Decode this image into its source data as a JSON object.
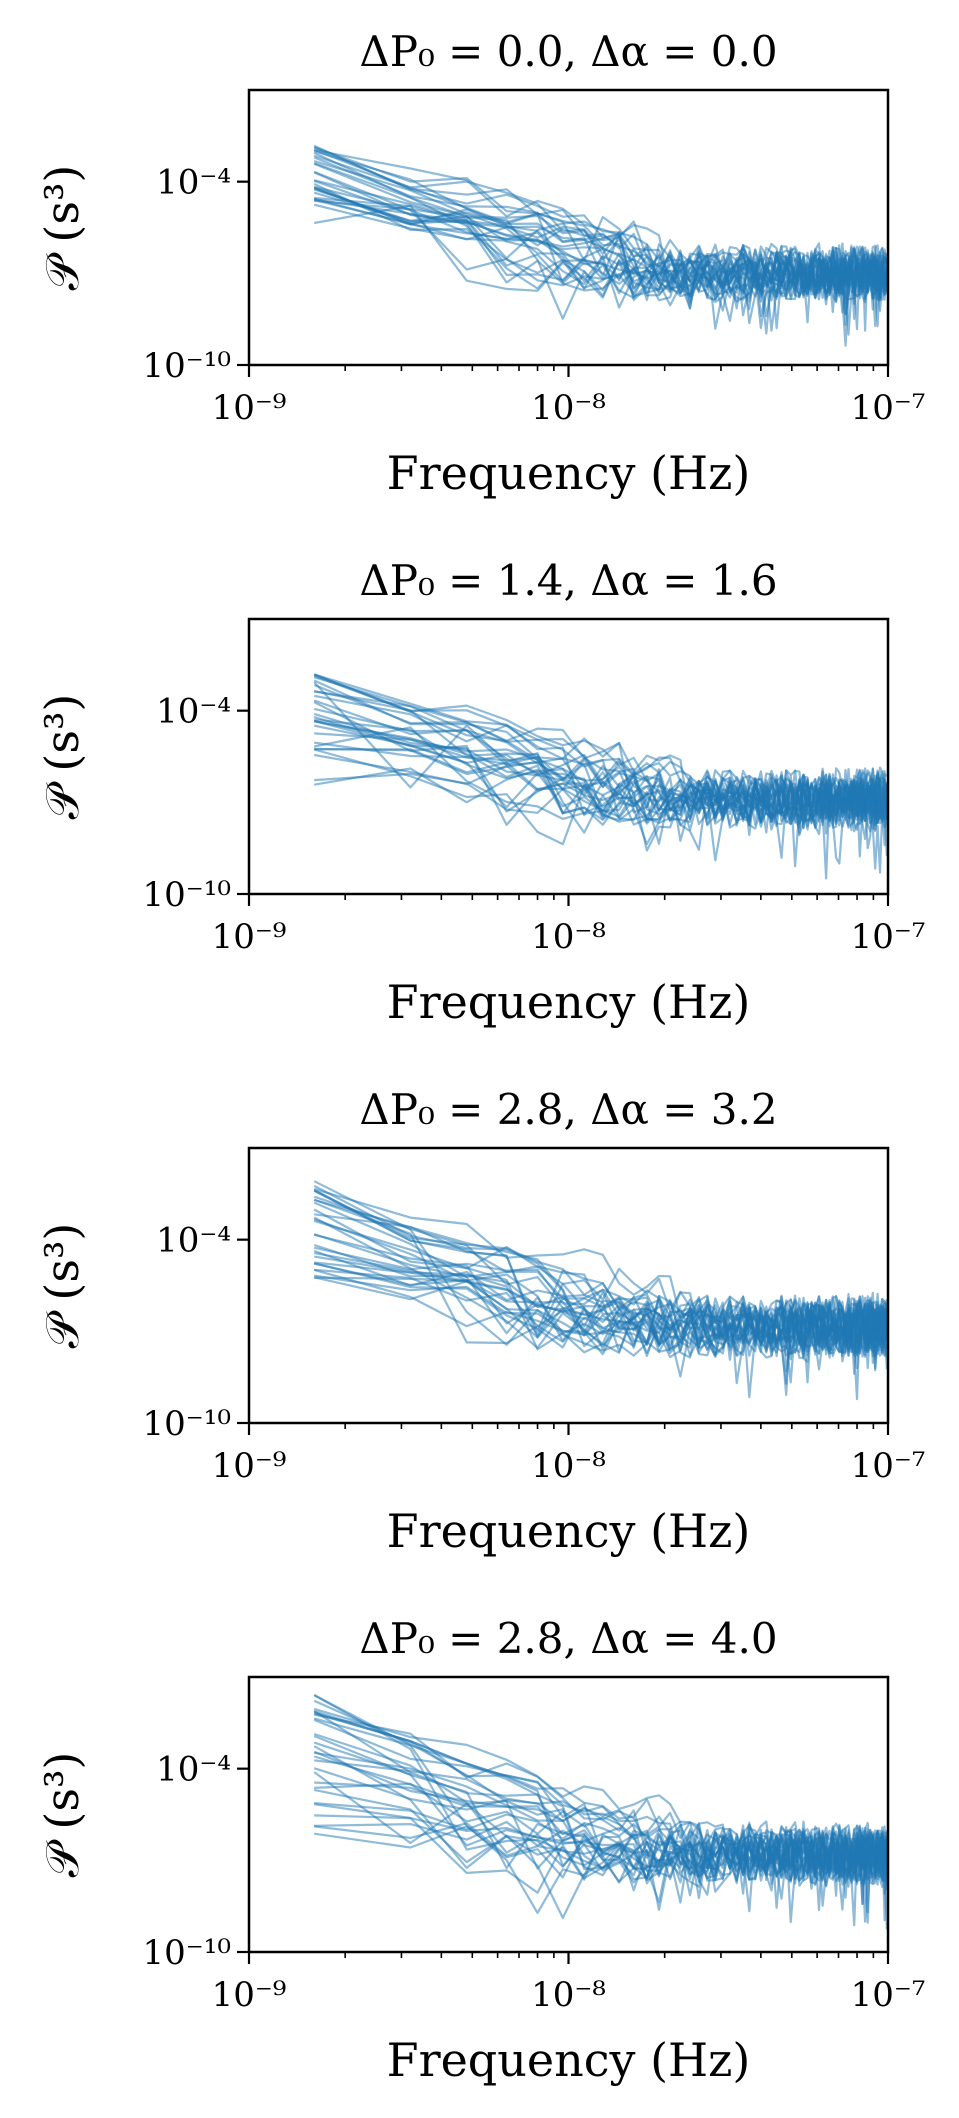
{
  "chart_data": [
    {
      "type": "line",
      "title": "ΔP₀ = 0.0, Δα = 0.0",
      "xlabel": "Frequency (Hz)",
      "ylabel": "𝒫 (s³)",
      "xscale": "log",
      "yscale": "log",
      "xlim": [
        1e-09,
        1e-07
      ],
      "ylim": [
        1e-10,
        0.1
      ],
      "xticks": [
        "10⁻⁹",
        "10⁻⁸",
        "10⁻⁷"
      ],
      "yticks": [
        "10⁻¹⁰",
        "10⁻⁴"
      ],
      "grid": false,
      "series_count": 30,
      "x_start": 1.6e-09,
      "start_log_range": [
        -4.8,
        -2.8
      ],
      "floor_log": -7.0,
      "noise_log": 0.7,
      "color": "#1f77b4"
    },
    {
      "type": "line",
      "title": "ΔP₀ = 1.4, Δα = 1.6",
      "xlabel": "Frequency (Hz)",
      "ylabel": "𝒫 (s³)",
      "xscale": "log",
      "yscale": "log",
      "xlim": [
        1e-09,
        1e-07
      ],
      "ylim": [
        1e-10,
        0.1
      ],
      "xticks": [
        "10⁻⁹",
        "10⁻⁸",
        "10⁻⁷"
      ],
      "yticks": [
        "10⁻¹⁰",
        "10⁻⁴"
      ],
      "grid": false,
      "series_count": 30,
      "x_start": 1.6e-09,
      "start_log_range": [
        -5.5,
        -2.8
      ],
      "floor_log": -6.9,
      "noise_log": 0.75,
      "color": "#1f77b4"
    },
    {
      "type": "line",
      "title": "ΔP₀ = 2.8, Δα = 3.2",
      "xlabel": "Frequency (Hz)",
      "ylabel": "𝒫 (s³)",
      "xscale": "log",
      "yscale": "log",
      "xlim": [
        1e-09,
        1e-07
      ],
      "ylim": [
        1e-10,
        0.1
      ],
      "xticks": [
        "10⁻⁹",
        "10⁻⁸",
        "10⁻⁷"
      ],
      "yticks": [
        "10⁻¹⁰",
        "10⁻⁴"
      ],
      "grid": false,
      "series_count": 30,
      "x_start": 1.6e-09,
      "start_log_range": [
        -5.5,
        -2.0
      ],
      "floor_log": -6.8,
      "noise_log": 0.8,
      "color": "#1f77b4"
    },
    {
      "type": "line",
      "title": "ΔP₀ = 2.8, Δα = 4.0",
      "xlabel": "Frequency (Hz)",
      "ylabel": "𝒫 (s³)",
      "xscale": "log",
      "yscale": "log",
      "xlim": [
        1e-09,
        1e-07
      ],
      "ylim": [
        1e-10,
        0.1
      ],
      "xticks": [
        "10⁻⁹",
        "10⁻⁸",
        "10⁻⁷"
      ],
      "yticks": [
        "10⁻¹⁰",
        "10⁻⁴"
      ],
      "grid": false,
      "series_count": 30,
      "x_start": 1.6e-09,
      "start_log_range": [
        -6.0,
        -1.5
      ],
      "floor_log": -6.8,
      "noise_log": 0.8,
      "color": "#1f77b4"
    }
  ]
}
